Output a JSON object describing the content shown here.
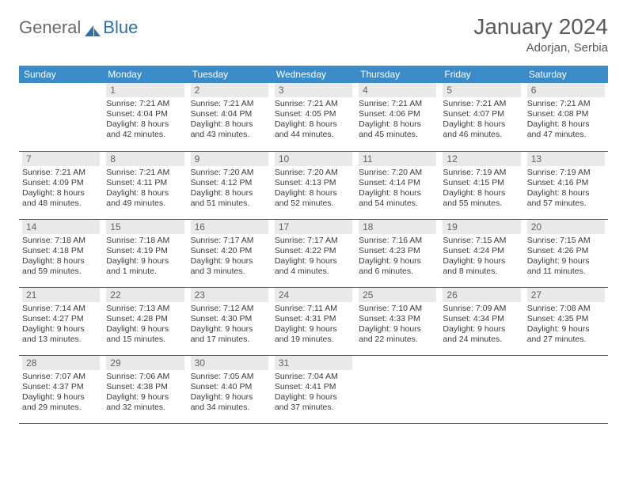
{
  "brand": {
    "word1": "General",
    "word2": "Blue",
    "word1_color": "#6a6a6a",
    "word2_color": "#2b6fb0",
    "icon_color": "#2b6fb0"
  },
  "title": "January 2024",
  "location": "Adorjan, Serbia",
  "colors": {
    "header_bg": "#3b8bc8",
    "header_text": "#ffffff",
    "daynum_bg": "#e9e9e9",
    "daynum_text": "#636363",
    "rule": "#3b6fa0",
    "body_text": "#3a3a3a",
    "title_text": "#5a5a5a"
  },
  "day_names": [
    "Sunday",
    "Monday",
    "Tuesday",
    "Wednesday",
    "Thursday",
    "Friday",
    "Saturday"
  ],
  "weeks": [
    [
      null,
      {
        "n": "1",
        "sr": "Sunrise: 7:21 AM",
        "ss": "Sunset: 4:04 PM",
        "d1": "Daylight: 8 hours",
        "d2": "and 42 minutes."
      },
      {
        "n": "2",
        "sr": "Sunrise: 7:21 AM",
        "ss": "Sunset: 4:04 PM",
        "d1": "Daylight: 8 hours",
        "d2": "and 43 minutes."
      },
      {
        "n": "3",
        "sr": "Sunrise: 7:21 AM",
        "ss": "Sunset: 4:05 PM",
        "d1": "Daylight: 8 hours",
        "d2": "and 44 minutes."
      },
      {
        "n": "4",
        "sr": "Sunrise: 7:21 AM",
        "ss": "Sunset: 4:06 PM",
        "d1": "Daylight: 8 hours",
        "d2": "and 45 minutes."
      },
      {
        "n": "5",
        "sr": "Sunrise: 7:21 AM",
        "ss": "Sunset: 4:07 PM",
        "d1": "Daylight: 8 hours",
        "d2": "and 46 minutes."
      },
      {
        "n": "6",
        "sr": "Sunrise: 7:21 AM",
        "ss": "Sunset: 4:08 PM",
        "d1": "Daylight: 8 hours",
        "d2": "and 47 minutes."
      }
    ],
    [
      {
        "n": "7",
        "sr": "Sunrise: 7:21 AM",
        "ss": "Sunset: 4:09 PM",
        "d1": "Daylight: 8 hours",
        "d2": "and 48 minutes."
      },
      {
        "n": "8",
        "sr": "Sunrise: 7:21 AM",
        "ss": "Sunset: 4:11 PM",
        "d1": "Daylight: 8 hours",
        "d2": "and 49 minutes."
      },
      {
        "n": "9",
        "sr": "Sunrise: 7:20 AM",
        "ss": "Sunset: 4:12 PM",
        "d1": "Daylight: 8 hours",
        "d2": "and 51 minutes."
      },
      {
        "n": "10",
        "sr": "Sunrise: 7:20 AM",
        "ss": "Sunset: 4:13 PM",
        "d1": "Daylight: 8 hours",
        "d2": "and 52 minutes."
      },
      {
        "n": "11",
        "sr": "Sunrise: 7:20 AM",
        "ss": "Sunset: 4:14 PM",
        "d1": "Daylight: 8 hours",
        "d2": "and 54 minutes."
      },
      {
        "n": "12",
        "sr": "Sunrise: 7:19 AM",
        "ss": "Sunset: 4:15 PM",
        "d1": "Daylight: 8 hours",
        "d2": "and 55 minutes."
      },
      {
        "n": "13",
        "sr": "Sunrise: 7:19 AM",
        "ss": "Sunset: 4:16 PM",
        "d1": "Daylight: 8 hours",
        "d2": "and 57 minutes."
      }
    ],
    [
      {
        "n": "14",
        "sr": "Sunrise: 7:18 AM",
        "ss": "Sunset: 4:18 PM",
        "d1": "Daylight: 8 hours",
        "d2": "and 59 minutes."
      },
      {
        "n": "15",
        "sr": "Sunrise: 7:18 AM",
        "ss": "Sunset: 4:19 PM",
        "d1": "Daylight: 9 hours",
        "d2": "and 1 minute."
      },
      {
        "n": "16",
        "sr": "Sunrise: 7:17 AM",
        "ss": "Sunset: 4:20 PM",
        "d1": "Daylight: 9 hours",
        "d2": "and 3 minutes."
      },
      {
        "n": "17",
        "sr": "Sunrise: 7:17 AM",
        "ss": "Sunset: 4:22 PM",
        "d1": "Daylight: 9 hours",
        "d2": "and 4 minutes."
      },
      {
        "n": "18",
        "sr": "Sunrise: 7:16 AM",
        "ss": "Sunset: 4:23 PM",
        "d1": "Daylight: 9 hours",
        "d2": "and 6 minutes."
      },
      {
        "n": "19",
        "sr": "Sunrise: 7:15 AM",
        "ss": "Sunset: 4:24 PM",
        "d1": "Daylight: 9 hours",
        "d2": "and 8 minutes."
      },
      {
        "n": "20",
        "sr": "Sunrise: 7:15 AM",
        "ss": "Sunset: 4:26 PM",
        "d1": "Daylight: 9 hours",
        "d2": "and 11 minutes."
      }
    ],
    [
      {
        "n": "21",
        "sr": "Sunrise: 7:14 AM",
        "ss": "Sunset: 4:27 PM",
        "d1": "Daylight: 9 hours",
        "d2": "and 13 minutes."
      },
      {
        "n": "22",
        "sr": "Sunrise: 7:13 AM",
        "ss": "Sunset: 4:28 PM",
        "d1": "Daylight: 9 hours",
        "d2": "and 15 minutes."
      },
      {
        "n": "23",
        "sr": "Sunrise: 7:12 AM",
        "ss": "Sunset: 4:30 PM",
        "d1": "Daylight: 9 hours",
        "d2": "and 17 minutes."
      },
      {
        "n": "24",
        "sr": "Sunrise: 7:11 AM",
        "ss": "Sunset: 4:31 PM",
        "d1": "Daylight: 9 hours",
        "d2": "and 19 minutes."
      },
      {
        "n": "25",
        "sr": "Sunrise: 7:10 AM",
        "ss": "Sunset: 4:33 PM",
        "d1": "Daylight: 9 hours",
        "d2": "and 22 minutes."
      },
      {
        "n": "26",
        "sr": "Sunrise: 7:09 AM",
        "ss": "Sunset: 4:34 PM",
        "d1": "Daylight: 9 hours",
        "d2": "and 24 minutes."
      },
      {
        "n": "27",
        "sr": "Sunrise: 7:08 AM",
        "ss": "Sunset: 4:35 PM",
        "d1": "Daylight: 9 hours",
        "d2": "and 27 minutes."
      }
    ],
    [
      {
        "n": "28",
        "sr": "Sunrise: 7:07 AM",
        "ss": "Sunset: 4:37 PM",
        "d1": "Daylight: 9 hours",
        "d2": "and 29 minutes."
      },
      {
        "n": "29",
        "sr": "Sunrise: 7:06 AM",
        "ss": "Sunset: 4:38 PM",
        "d1": "Daylight: 9 hours",
        "d2": "and 32 minutes."
      },
      {
        "n": "30",
        "sr": "Sunrise: 7:05 AM",
        "ss": "Sunset: 4:40 PM",
        "d1": "Daylight: 9 hours",
        "d2": "and 34 minutes."
      },
      {
        "n": "31",
        "sr": "Sunrise: 7:04 AM",
        "ss": "Sunset: 4:41 PM",
        "d1": "Daylight: 9 hours",
        "d2": "and 37 minutes."
      },
      null,
      null,
      null
    ]
  ]
}
